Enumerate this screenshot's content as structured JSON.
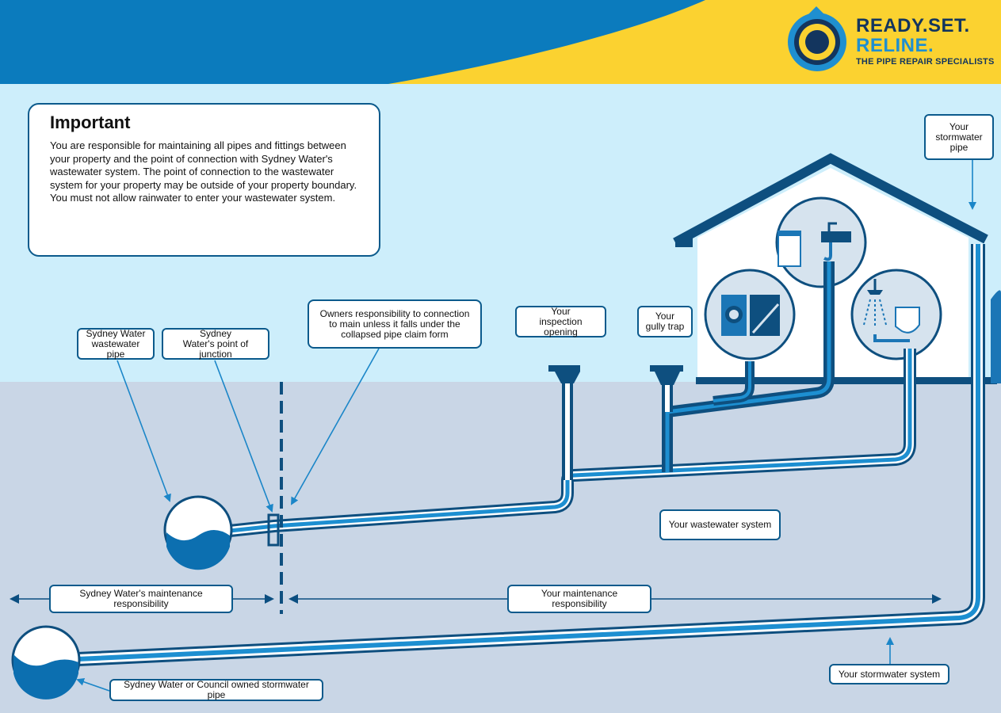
{
  "brand": {
    "line1": "READY.SET.",
    "line2": "RELINE.",
    "tagline": "THE PIPE REPAIR SPECIALISTS"
  },
  "important": {
    "heading": "Important",
    "body": "You are responsible for maintaining all pipes and fittings between your property and the point of connection with Sydney Water's wastewater system. The point of connection to the wastewater system for your property may be outside of your property boundary. You must not allow rainwater to enter your wastewater system."
  },
  "labels": {
    "sw_pipe": "Sydney Water\nwastewater pipe",
    "sw_junction": "Sydney\nWater's point of junction",
    "owners_resp": "Owners responsibility to connection\nto main unless it falls under the\ncollapsed pipe claim form",
    "inspection": "Your\ninspection opening",
    "gully": "Your\ngully trap",
    "stormwater_pipe": "Your\nstormwater\npipe",
    "wastewater_system": "Your wastewater system",
    "sw_maintenance": "Sydney Water's maintenance responsibility",
    "your_maintenance": "Your maintenance responsibility",
    "council_stormwater": "Sydney Water or Council owned stormwater pipe",
    "stormwater_system": "Your stormwater system"
  },
  "colors": {
    "sky": "#cdeefb",
    "ground": "#c9d6e6",
    "header_blue": "#0b7bbd",
    "header_yellow": "#fbd230",
    "pipe_dark": "#0e4f7f",
    "pipe_light": "#1d8fd1",
    "water": "#0c6fb0"
  }
}
